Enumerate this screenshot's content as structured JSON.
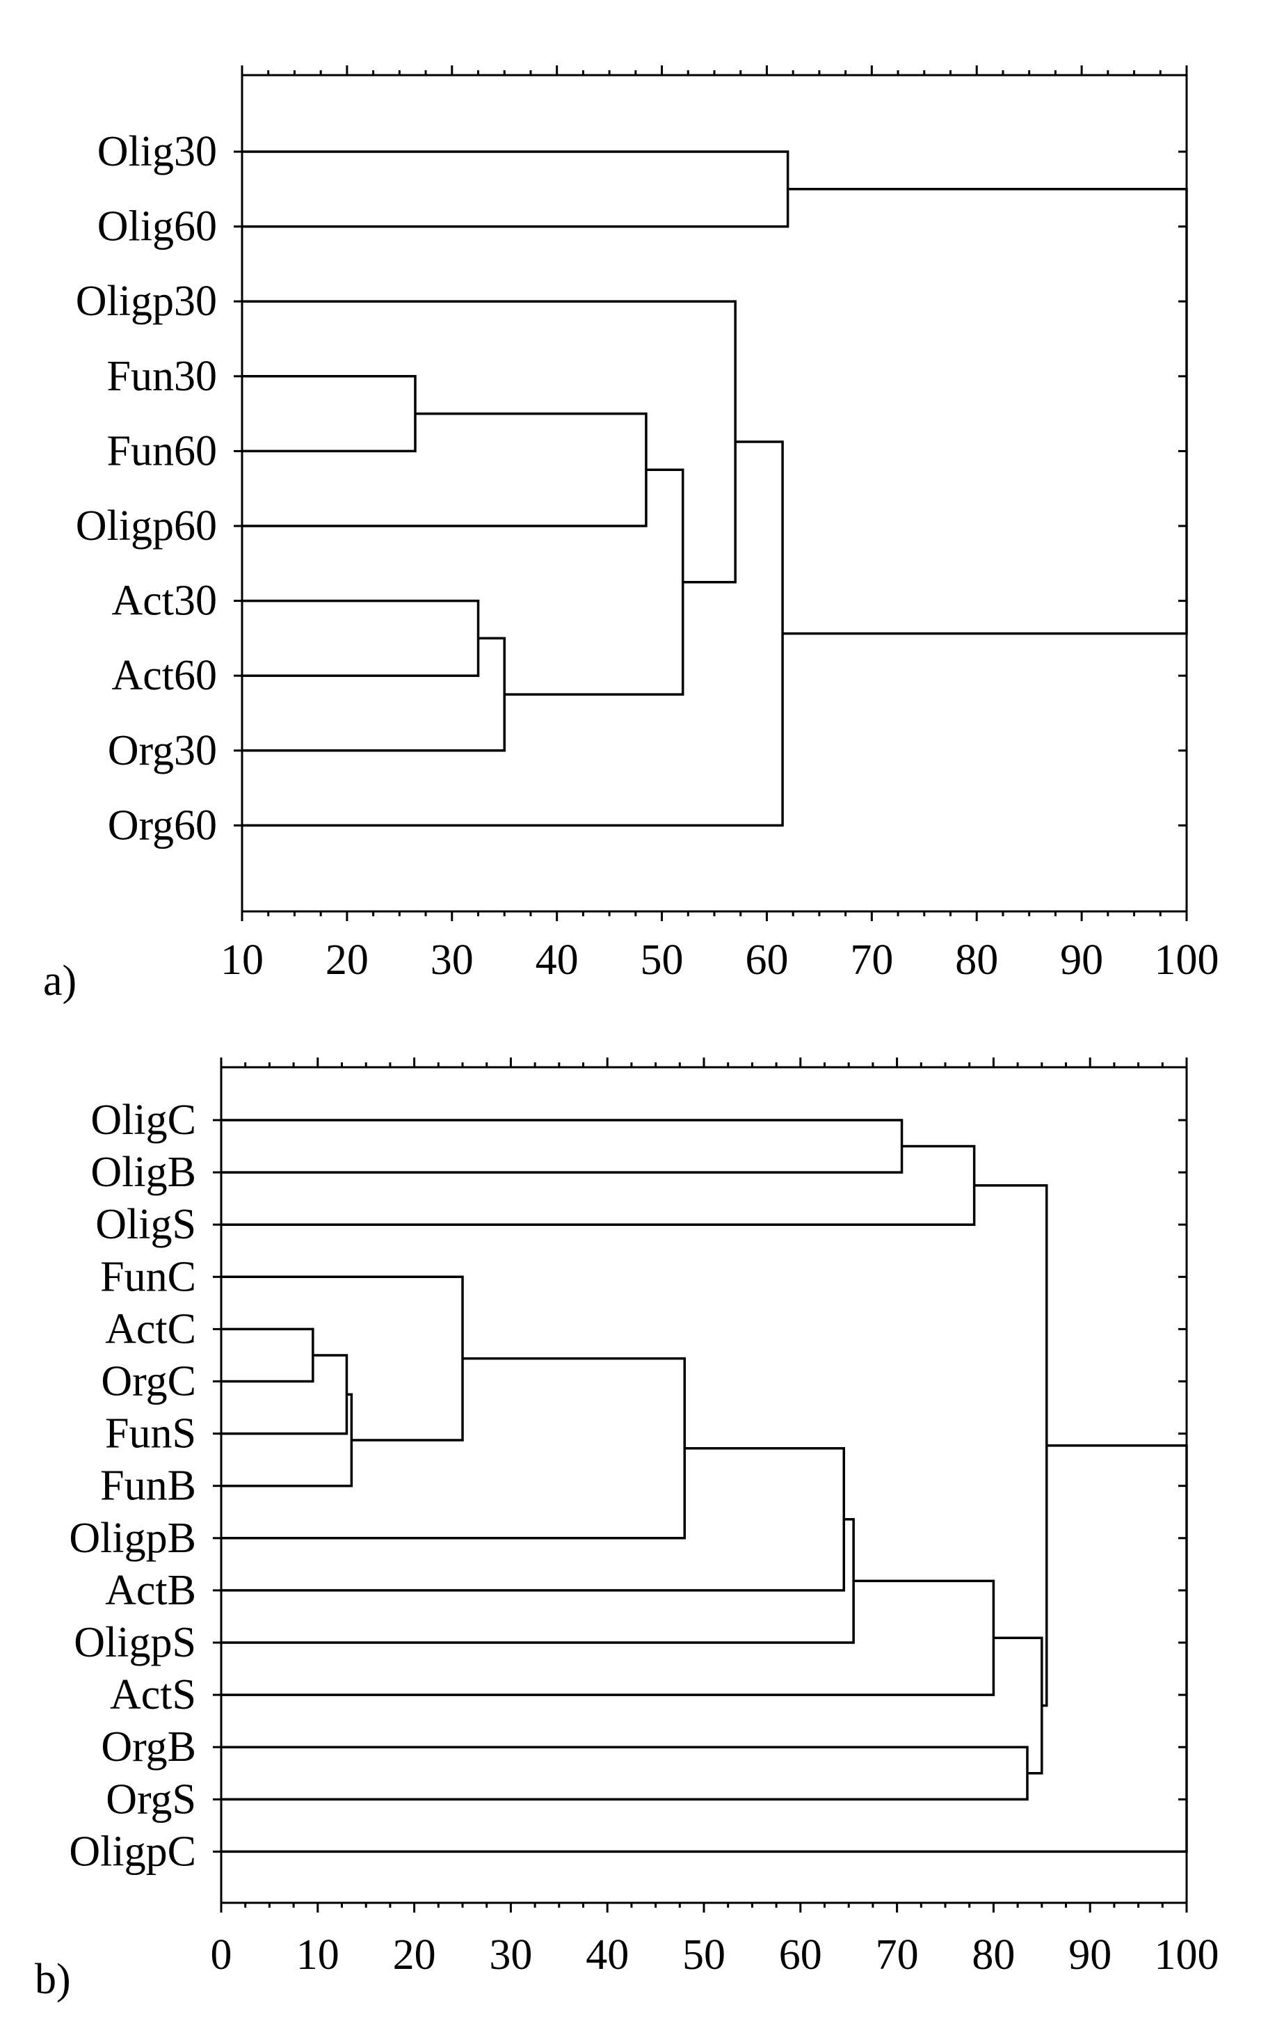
{
  "chart_data": [
    {
      "panel": "a)",
      "type": "dendrogram",
      "xlim": [
        10,
        100
      ],
      "xticks": [
        10,
        20,
        30,
        40,
        50,
        60,
        70,
        80,
        90,
        100
      ],
      "leaves": [
        "Olig30",
        "Olig60",
        "Oligp30",
        "Fun30",
        "Fun60",
        "Oligp60",
        "Act30",
        "Act60",
        "Org30",
        "Org60"
      ],
      "merges": [
        {
          "left": "Olig30",
          "right": "Olig60",
          "height": 62
        },
        {
          "left": "Fun30",
          "right": "Fun60",
          "height": 26.5
        },
        {
          "left": "c2",
          "right": "Oligp60",
          "height": 48.5
        },
        {
          "left": "Act30",
          "right": "Act60",
          "height": 32.5
        },
        {
          "left": "c4",
          "right": "Org30",
          "height": 35
        },
        {
          "left": "c3",
          "right": "c5",
          "height": 52
        },
        {
          "left": "Oligp30",
          "right": "c6",
          "height": 57
        },
        {
          "left": "c7",
          "right": "Org60",
          "height": 61.5
        },
        {
          "left": "c1",
          "right": "c8",
          "height": 100
        }
      ]
    },
    {
      "panel": "b)",
      "type": "dendrogram",
      "xlim": [
        0,
        100
      ],
      "xticks": [
        0,
        10,
        20,
        30,
        40,
        50,
        60,
        70,
        80,
        90,
        100
      ],
      "leaves": [
        "OligC",
        "OligB",
        "OligS",
        "FunC",
        "ActC",
        "OrgC",
        "FunS",
        "FunB",
        "OligpB",
        "ActB",
        "OligpS",
        "ActS",
        "OrgB",
        "OrgS",
        "OligpC"
      ],
      "merges": [
        {
          "left": "OligC",
          "right": "OligB",
          "height": 70.5
        },
        {
          "left": "c1",
          "right": "OligS",
          "height": 78
        },
        {
          "left": "ActC",
          "right": "OrgC",
          "height": 9.5
        },
        {
          "left": "c3",
          "right": "FunS",
          "height": 13
        },
        {
          "left": "c4",
          "right": "FunB",
          "height": 13.5
        },
        {
          "left": "FunC",
          "right": "c5",
          "height": 25
        },
        {
          "left": "c6",
          "right": "OligpB",
          "height": 48
        },
        {
          "left": "c7",
          "right": "ActB",
          "height": 64.5
        },
        {
          "left": "c8",
          "right": "OligpS",
          "height": 65.5
        },
        {
          "left": "c9",
          "right": "ActS",
          "height": 80
        },
        {
          "left": "OrgB",
          "right": "OrgS",
          "height": 83.5
        },
        {
          "left": "c10",
          "right": "c11",
          "height": 85
        },
        {
          "left": "c2",
          "right": "c12",
          "height": 85.5
        },
        {
          "left": "c13",
          "right": "OligpC",
          "height": 100
        }
      ]
    }
  ]
}
